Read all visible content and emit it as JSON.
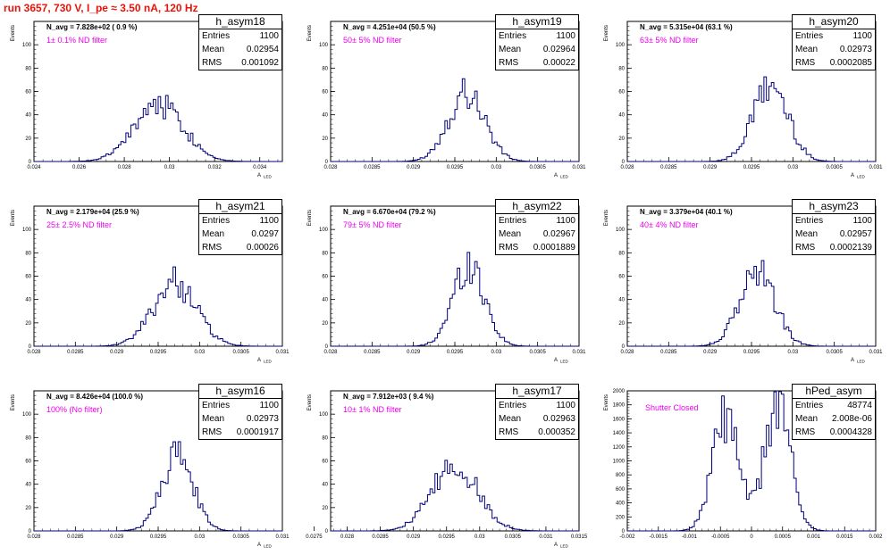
{
  "page": {
    "title": "run 3657,   730 V, I_pe ≈ 3.50 nA, 120 Hz"
  },
  "chart_data": [
    {
      "type": "histogram",
      "name": "h_asym18",
      "navg": "N_avg = 7.828e+02 ( 0.9 %)",
      "filter": "1± 0.1% ND filter",
      "stats": [
        [
          "Entries",
          "1100"
        ],
        [
          "Mean",
          "0.02954"
        ],
        [
          "RMS",
          "0.001092"
        ]
      ],
      "xlim": [
        0.024,
        0.035
      ],
      "ylim": [
        0,
        120
      ],
      "xticks": [
        "0.024",
        "0.026",
        "0.028",
        "0.03",
        "0.032",
        "0.034"
      ],
      "xtick_values": [
        0.024,
        0.026,
        0.028,
        0.03,
        0.032,
        0.034
      ],
      "yticks": [
        "0",
        "20",
        "40",
        "60",
        "80",
        "100"
      ],
      "ytick_values": [
        0,
        20,
        40,
        60,
        80,
        100
      ],
      "xlabel": "A_LED",
      "ylabel": "Events",
      "peaks": [
        {
          "x": 0.02954,
          "sigma": 0.00108,
          "height": 50
        }
      ]
    },
    {
      "type": "histogram",
      "name": "h_asym19",
      "navg": "N_avg = 4.251e+04 (50.5 %)",
      "filter": "50± 5% ND filter",
      "stats": [
        [
          "Entries",
          "1100"
        ],
        [
          "Mean",
          "0.02964"
        ],
        [
          "RMS",
          "0.00022"
        ]
      ],
      "xlim": [
        0.028,
        0.031
      ],
      "ylim": [
        0,
        120
      ],
      "xticks": [
        "0.028",
        "0.0285",
        "0.029",
        "0.0295",
        "0.03",
        "0.0305",
        "0.031"
      ],
      "xtick_values": [
        0.028,
        0.0285,
        0.029,
        0.0295,
        0.03,
        0.0305,
        0.031
      ],
      "yticks": [
        "0",
        "20",
        "40",
        "60",
        "80",
        "100"
      ],
      "ytick_values": [
        0,
        20,
        40,
        60,
        80,
        100
      ],
      "xlabel": "A_LED",
      "ylabel": "Events",
      "peaks": [
        {
          "x": 0.02964,
          "sigma": 0.00022,
          "height": 60
        }
      ]
    },
    {
      "type": "histogram",
      "name": "h_asym20",
      "navg": "N_avg = 5.315e+04 (63.1 %)",
      "filter": "63± 5% ND filter",
      "stats": [
        [
          "Entries",
          "1100"
        ],
        [
          "Mean",
          "0.02973"
        ],
        [
          "RMS",
          "0.0002085"
        ]
      ],
      "xlim": [
        0.028,
        0.031
      ],
      "ylim": [
        0,
        120
      ],
      "xticks": [
        "0.028",
        "0.0285",
        "0.029",
        "0.0295",
        "0.03",
        "0.0305",
        "0.031"
      ],
      "xtick_values": [
        0.028,
        0.0285,
        0.029,
        0.0295,
        0.03,
        0.0305,
        0.031
      ],
      "yticks": [
        "0",
        "20",
        "40",
        "60",
        "80",
        "100"
      ],
      "ytick_values": [
        0,
        20,
        40,
        60,
        80,
        100
      ],
      "xlabel": "A_LED",
      "ylabel": "Events",
      "peaks": [
        {
          "x": 0.02973,
          "sigma": 0.00021,
          "height": 65
        }
      ]
    },
    {
      "type": "histogram",
      "name": "h_asym21",
      "navg": "N_avg = 2.179e+04 (25.9 %)",
      "filter": "25± 2.5% ND filter",
      "stats": [
        [
          "Entries",
          "1100"
        ],
        [
          "Mean",
          "0.0297"
        ],
        [
          "RMS",
          "0.00026"
        ]
      ],
      "xlim": [
        0.028,
        0.031
      ],
      "ylim": [
        0,
        120
      ],
      "xticks": [
        "0.028",
        "0.0285",
        "0.029",
        "0.0295",
        "0.03",
        "0.0305",
        "0.031"
      ],
      "xtick_values": [
        0.028,
        0.0285,
        0.029,
        0.0295,
        0.03,
        0.0305,
        0.031
      ],
      "yticks": [
        "0",
        "20",
        "40",
        "60",
        "80",
        "100"
      ],
      "ytick_values": [
        0,
        20,
        40,
        60,
        80,
        100
      ],
      "xlabel": "A_LED",
      "ylabel": "Events",
      "peaks": [
        {
          "x": 0.0297,
          "sigma": 0.00026,
          "height": 55
        }
      ]
    },
    {
      "type": "histogram",
      "name": "h_asym22",
      "navg": "N_avg = 6.670e+04 (79.2 %)",
      "filter": "79± 5% ND filter",
      "stats": [
        [
          "Entries",
          "1100"
        ],
        [
          "Mean",
          "0.02967"
        ],
        [
          "RMS",
          "0.0001889"
        ]
      ],
      "xlim": [
        0.028,
        0.031
      ],
      "ylim": [
        0,
        120
      ],
      "xticks": [
        "0.028",
        "0.0285",
        "0.029",
        "0.0295",
        "0.03",
        "0.0305",
        "0.031"
      ],
      "xtick_values": [
        0.028,
        0.0285,
        0.029,
        0.0295,
        0.03,
        0.0305,
        0.031
      ],
      "yticks": [
        "0",
        "20",
        "40",
        "60",
        "80",
        "100"
      ],
      "ytick_values": [
        0,
        20,
        40,
        60,
        80,
        100
      ],
      "xlabel": "A_LED",
      "ylabel": "Events",
      "peaks": [
        {
          "x": 0.02967,
          "sigma": 0.00019,
          "height": 70
        }
      ]
    },
    {
      "type": "histogram",
      "name": "h_asym23",
      "navg": "N_avg = 3.379e+04 (40.1 %)",
      "filter": "40± 4% ND filter",
      "stats": [
        [
          "Entries",
          "1100"
        ],
        [
          "Mean",
          "0.02957"
        ],
        [
          "RMS",
          "0.0002139"
        ]
      ],
      "xlim": [
        0.028,
        0.031
      ],
      "ylim": [
        0,
        120
      ],
      "xticks": [
        "0.028",
        "0.0285",
        "0.029",
        "0.0295",
        "0.03",
        "0.0305",
        "0.031"
      ],
      "xtick_values": [
        0.028,
        0.0285,
        0.029,
        0.0295,
        0.03,
        0.0305,
        0.031
      ],
      "yticks": [
        "0",
        "20",
        "40",
        "60",
        "80",
        "100"
      ],
      "ytick_values": [
        0,
        20,
        40,
        60,
        80,
        100
      ],
      "xlabel": "A_LED",
      "ylabel": "Events",
      "peaks": [
        {
          "x": 0.02957,
          "sigma": 0.00021,
          "height": 65
        }
      ]
    },
    {
      "type": "histogram",
      "name": "h_asym16",
      "navg": "N_avg = 8.426e+04 (100.0 %)",
      "filter": "100% (No filter)",
      "stats": [
        [
          "Entries",
          "1100"
        ],
        [
          "Mean",
          "0.02973"
        ],
        [
          "RMS",
          "0.0001917"
        ]
      ],
      "xlim": [
        0.028,
        0.031
      ],
      "ylim": [
        0,
        120
      ],
      "xticks": [
        "0.028",
        "0.0285",
        "0.029",
        "0.0295",
        "0.03",
        "0.0305",
        "0.031"
      ],
      "xtick_values": [
        0.028,
        0.0285,
        0.029,
        0.0295,
        0.03,
        0.0305,
        0.031
      ],
      "yticks": [
        "0",
        "20",
        "40",
        "60",
        "80",
        "100"
      ],
      "ytick_values": [
        0,
        20,
        40,
        60,
        80,
        100
      ],
      "xlabel": "A_LED",
      "ylabel": "Events",
      "peaks": [
        {
          "x": 0.02973,
          "sigma": 0.00019,
          "height": 65
        }
      ]
    },
    {
      "type": "histogram",
      "name": "h_asym17",
      "navg": "N_avg = 7.912e+03 ( 9.4 %)",
      "filter": "10± 1% ND filter",
      "stats": [
        [
          "Entries",
          "1100"
        ],
        [
          "Mean",
          "0.02963"
        ],
        [
          "RMS",
          "0.000352"
        ]
      ],
      "xlim": [
        0.02775,
        0.0315
      ],
      "ylim": [
        0,
        120
      ],
      "xticks": [
        "0.0275",
        "0.028",
        "0.0285",
        "0.029",
        "0.0295",
        "0.03",
        "0.0305",
        "0.031",
        "0.0315"
      ],
      "xtick_values": [
        0.0275,
        0.028,
        0.0285,
        0.029,
        0.0295,
        0.03,
        0.0305,
        0.031,
        0.0315
      ],
      "yticks": [
        "0",
        "20",
        "40",
        "60",
        "80",
        "100"
      ],
      "ytick_values": [
        0,
        20,
        40,
        60,
        80,
        100
      ],
      "xlabel": "A_LED",
      "ylabel": "Events",
      "peaks": [
        {
          "x": 0.02963,
          "sigma": 0.00035,
          "height": 55
        }
      ]
    },
    {
      "type": "histogram",
      "name": "hPed_asym",
      "navg": "",
      "filter": "Shutter Closed",
      "stats": [
        [
          "Entries",
          "48774"
        ],
        [
          "Mean",
          "2.008e-06"
        ],
        [
          "RMS",
          "0.0004328"
        ]
      ],
      "xlim": [
        -0.002,
        0.002
      ],
      "ylim": [
        0,
        2000
      ],
      "xticks": [
        "-0.002",
        "-0.0015",
        "-0.001",
        "-0.0005",
        "0",
        "0.0005",
        "0.001",
        "0.0015",
        "0.002"
      ],
      "xtick_values": [
        -0.002,
        -0.0015,
        -0.001,
        -0.0005,
        0,
        0.0005,
        0.001,
        0.0015,
        0.002
      ],
      "yticks": [
        "0",
        "200",
        "400",
        "600",
        "800",
        "1000",
        "1200",
        "1400",
        "1600",
        "1800",
        "2000"
      ],
      "ytick_values": [
        0,
        200,
        400,
        600,
        800,
        1000,
        1200,
        1400,
        1600,
        1800,
        2000
      ],
      "xlabel": "",
      "ylabel": "Events",
      "peaks": [
        {
          "x": -0.00042,
          "sigma": 0.00021,
          "height": 1620
        },
        {
          "x": 0.00042,
          "sigma": 0.00021,
          "height": 1800
        }
      ]
    }
  ]
}
